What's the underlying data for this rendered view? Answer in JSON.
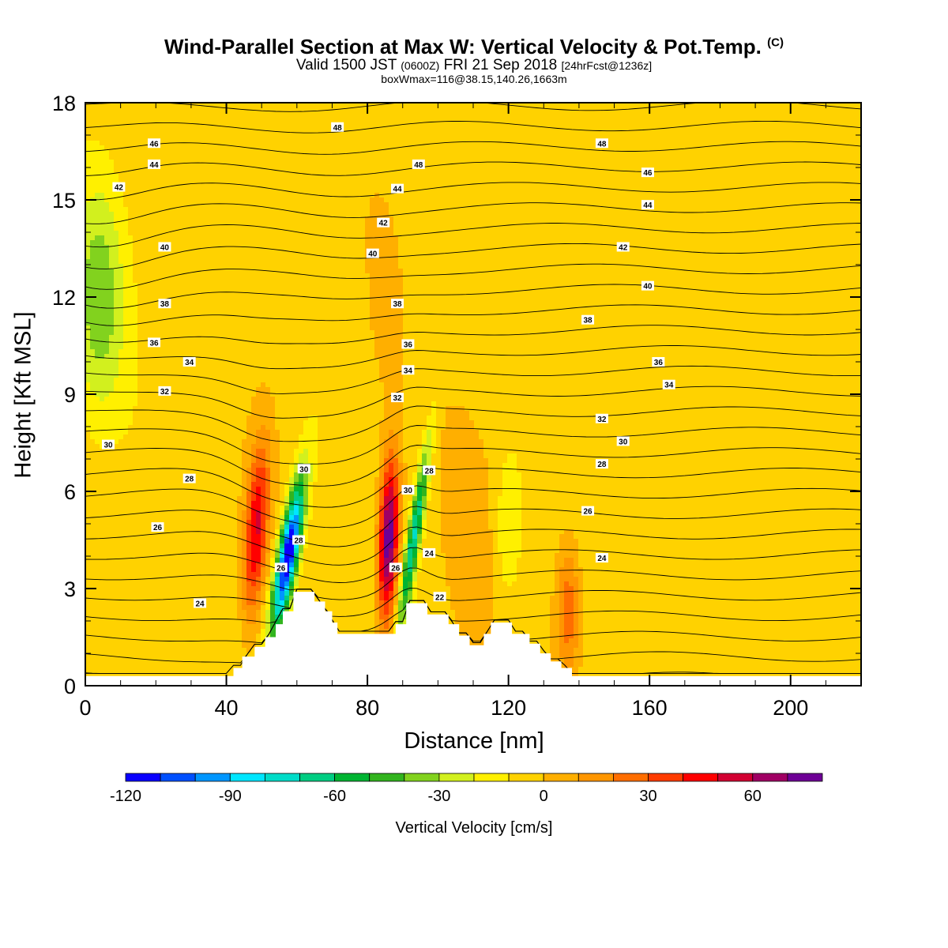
{
  "title": "Wind-Parallel Section at Max W: Vertical Velocity & Pot.Temp.",
  "title_mark": "(C)",
  "subtitle_valid": "Valid 1500 JST",
  "subtitle_utc": "(0600Z)",
  "subtitle_date": "FRI 21 Sep 2018",
  "subtitle_fcst": "[24hrFcst@1236z]",
  "box_info": "boxWmax=116@38.15,140.26,1663m",
  "chart_data": {
    "type": "heatmap",
    "xlabel": "Distance [nm]",
    "ylabel": "Height [Kft MSL]",
    "xlim": [
      0,
      220
    ],
    "ylim": [
      0,
      18
    ],
    "xticks": [
      "0",
      "40",
      "80",
      "120",
      "160",
      "200"
    ],
    "xtick_values": [
      0,
      40,
      80,
      120,
      160,
      200
    ],
    "yticks": [
      "0",
      "3",
      "6",
      "9",
      "12",
      "15",
      "18"
    ],
    "ytick_values": [
      0,
      3,
      6,
      9,
      12,
      15,
      18
    ],
    "colorbar": {
      "label": "Vertical Velocity [cm/s]",
      "range": [
        -120,
        80
      ],
      "step": 10,
      "tick_labels": [
        "-120",
        "-90",
        "-60",
        "-30",
        "0",
        "30",
        "60"
      ],
      "tick_values": [
        -120,
        -90,
        -60,
        -30,
        0,
        30,
        60
      ],
      "colors": [
        "#0a00ff",
        "#0050ff",
        "#0096ff",
        "#00e6ff",
        "#00dcc8",
        "#00cd82",
        "#00b432",
        "#32b41e",
        "#82d21e",
        "#d2f01e",
        "#fff000",
        "#ffd200",
        "#ffaf00",
        "#ff9600",
        "#ff6e00",
        "#ff3c00",
        "#ff0000",
        "#d20032",
        "#a00064",
        "#6e0096"
      ]
    },
    "theta_contours": {
      "units": "C",
      "labels": [
        {
          "v": 48,
          "x": 71.5,
          "y": 17.25
        },
        {
          "v": 46,
          "x": 19.5,
          "y": 16.75
        },
        {
          "v": 44,
          "x": 19.5,
          "y": 16.1
        },
        {
          "v": 42,
          "x": 9.5,
          "y": 15.4
        },
        {
          "v": 40,
          "x": 22.5,
          "y": 13.55
        },
        {
          "v": 38,
          "x": 22.5,
          "y": 11.8
        },
        {
          "v": 36,
          "x": 19.5,
          "y": 10.6
        },
        {
          "v": 34,
          "x": 29.5,
          "y": 10.0
        },
        {
          "v": 32,
          "x": 22.5,
          "y": 9.1
        },
        {
          "v": 30,
          "x": 6.5,
          "y": 7.45
        },
        {
          "v": 28,
          "x": 29.5,
          "y": 6.4
        },
        {
          "v": 26,
          "x": 20.5,
          "y": 4.9
        },
        {
          "v": 24,
          "x": 32.5,
          "y": 2.55
        },
        {
          "v": 48,
          "x": 94.5,
          "y": 16.1
        },
        {
          "v": 44,
          "x": 88.5,
          "y": 15.35
        },
        {
          "v": 42,
          "x": 84.5,
          "y": 14.3
        },
        {
          "v": 40,
          "x": 81.5,
          "y": 13.35
        },
        {
          "v": 38,
          "x": 88.5,
          "y": 11.8
        },
        {
          "v": 36,
          "x": 91.5,
          "y": 10.55
        },
        {
          "v": 34,
          "x": 91.5,
          "y": 9.75
        },
        {
          "v": 32,
          "x": 88.5,
          "y": 8.9
        },
        {
          "v": 30,
          "x": 62.0,
          "y": 6.7
        },
        {
          "v": 28,
          "x": 60.5,
          "y": 4.5
        },
        {
          "v": 26,
          "x": 55.5,
          "y": 3.65
        },
        {
          "v": 30,
          "x": 91.5,
          "y": 6.05
        },
        {
          "v": 28,
          "x": 97.5,
          "y": 6.65
        },
        {
          "v": 26,
          "x": 88.0,
          "y": 3.65
        },
        {
          "v": 24,
          "x": 97.5,
          "y": 4.1
        },
        {
          "v": 22,
          "x": 100.5,
          "y": 2.75
        },
        {
          "v": 48,
          "x": 146.5,
          "y": 16.75
        },
        {
          "v": 46,
          "x": 159.5,
          "y": 15.85
        },
        {
          "v": 44,
          "x": 159.5,
          "y": 14.85
        },
        {
          "v": 42,
          "x": 152.5,
          "y": 13.55
        },
        {
          "v": 40,
          "x": 159.5,
          "y": 12.35
        },
        {
          "v": 38,
          "x": 142.5,
          "y": 11.3
        },
        {
          "v": 36,
          "x": 162.5,
          "y": 10.0
        },
        {
          "v": 34,
          "x": 165.5,
          "y": 9.3
        },
        {
          "v": 32,
          "x": 146.5,
          "y": 8.25
        },
        {
          "v": 30,
          "x": 152.5,
          "y": 7.55
        },
        {
          "v": 28,
          "x": 146.5,
          "y": 6.85
        },
        {
          "v": 26,
          "x": 142.5,
          "y": 5.4
        },
        {
          "v": 24,
          "x": 146.5,
          "y": 3.95
        }
      ]
    }
  }
}
